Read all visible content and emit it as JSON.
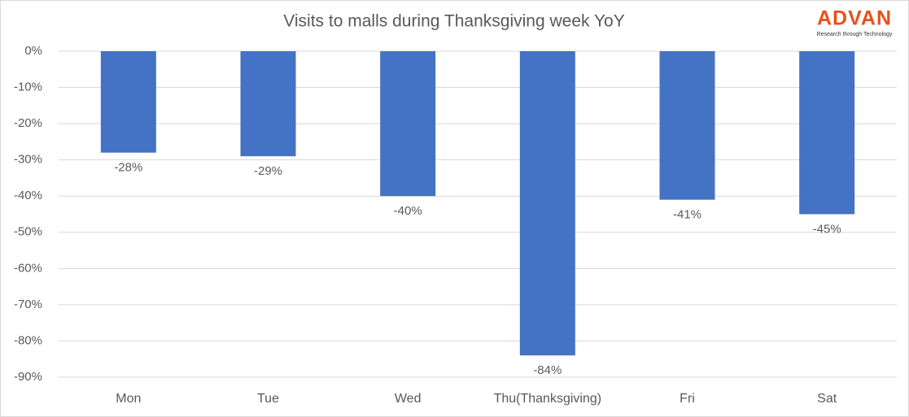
{
  "chart_data": {
    "type": "bar",
    "title": "Visits to malls during Thanksgiving week YoY",
    "logo": {
      "name": "ADVAN",
      "tagline": "Research through Technology"
    },
    "categories": [
      "Mon",
      "Tue",
      "Wed",
      "Thu(Thanksgiving)",
      "Fri",
      "Sat"
    ],
    "values": [
      -28,
      -29,
      -40,
      -84,
      -41,
      -45
    ],
    "value_labels": [
      "-28%",
      "-29%",
      "-40%",
      "-84%",
      "-41%",
      "-45%"
    ],
    "color": "#4472c4",
    "ylim": [
      -90,
      0
    ],
    "yticks": [
      {
        "value": 0,
        "label": "0%"
      },
      {
        "value": -10,
        "label": "-10%"
      },
      {
        "value": -20,
        "label": "-20%"
      },
      {
        "value": -30,
        "label": "-30%"
      },
      {
        "value": -40,
        "label": "-40%"
      },
      {
        "value": -50,
        "label": "-50%"
      },
      {
        "value": -60,
        "label": "-60%"
      },
      {
        "value": -70,
        "label": "-70%"
      },
      {
        "value": -80,
        "label": "-80%"
      },
      {
        "value": -90,
        "label": "-90%"
      }
    ],
    "grid": true
  }
}
